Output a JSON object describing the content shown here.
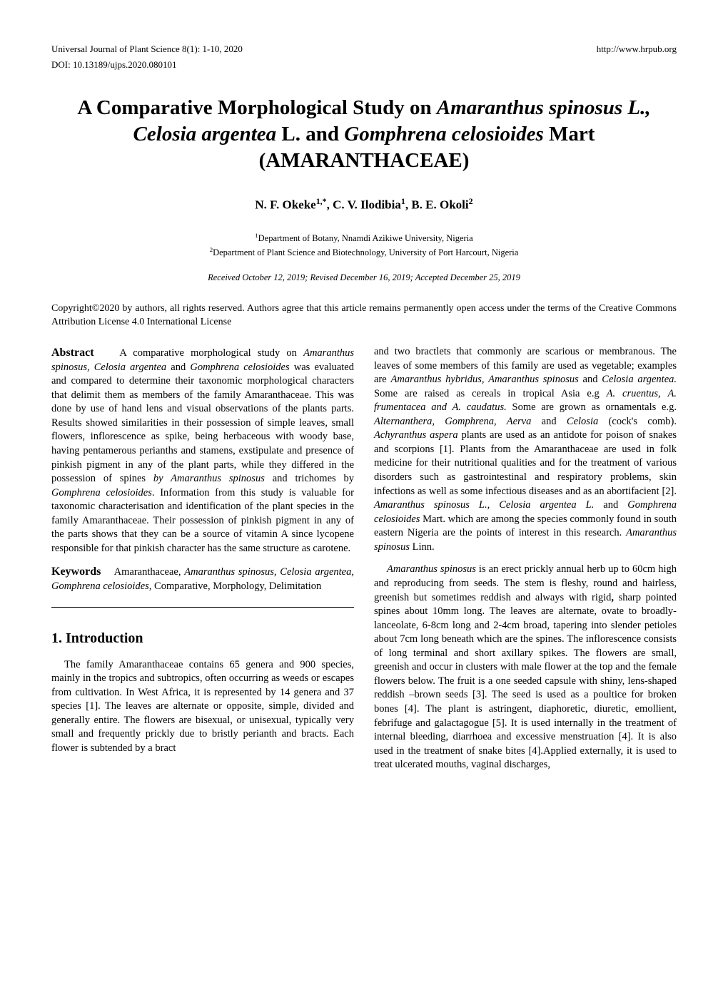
{
  "header": {
    "journal": "Universal Journal of Plant Science 8(1): 1-10, 2020",
    "url": "http://www.hrpub.org",
    "doi": "DOI: 10.13189/ujps.2020.080101"
  },
  "title_lines": [
    "A Comparative Morphological Study on ",
    "Amaranthus spinosus L., Celosia argentea",
    " L. and ",
    "Gomphrena celosioides",
    " Mart (AMARANTHACEAE)"
  ],
  "authors": "N. F. Okeke",
  "author_sup1": "1,*",
  "authors2": ", C. V. Ilodibia",
  "author_sup2": "1",
  "authors3": ", B. E. Okoli",
  "author_sup3": "2",
  "affil1_sup": "1",
  "affil1": "Department of Botany, Nnamdi Azikiwe University, Nigeria",
  "affil2_sup": "2",
  "affil2": "Department of Plant Science and Biotechnology, University of Port Harcourt, Nigeria",
  "received": "Received October 12, 2019; Revised December 16, 2019; Accepted December 25, 2019",
  "copyright": "Copyright©2020 by authors, all rights reserved. Authors agree that this article remains permanently open access under the terms of the Creative Commons Attribution License 4.0 International License",
  "abstract_label": "Abstract",
  "abstract_body1": "A comparative morphological study on ",
  "abstract_italic1": "Amaranthus spinosus, Celosia argentea",
  "abstract_body2": " and ",
  "abstract_italic2": "Gomphrena celosioides",
  "abstract_body3": " was evaluated and compared to determine their taxonomic morphological characters that delimit them as members of the family Amaranthaceae. This was done by use of hand lens and visual observations of the plants parts. Results showed similarities in their possession of simple leaves, small flowers, inflorescence as spike, being herbaceous with woody base, having pentamerous perianths and stamens, exstipulate and presence of pinkish pigment in any of the plant parts, while they differed in the possession of spines ",
  "abstract_italic3": "by Amaranthus spinosus",
  "abstract_body4": " and trichomes by ",
  "abstract_italic4": "Gomphrena celosioides",
  "abstract_body5": ". Information from this study is valuable for taxonomic characterisation and identification of the plant species in the family Amaranthaceae. Their possession of pinkish pigment in any of the parts shows that they can be a source of vitamin A since lycopene responsible for that pinkish character has the same structure as carotene.",
  "keywords_label": "Keywords",
  "keywords_body1": "Amaranthaceae, ",
  "keywords_italic1": "Amaranthus spinosus, Celosia argentea, Gomphrena celosioides,",
  "keywords_body2": " Comparative, Morphology, Delimitation",
  "section1_heading": "1. Introduction",
  "intro_p1": "The family Amaranthaceae contains 65 genera and 900 species, mainly in the tropics and subtropics, often occurring as weeds or escapes from cultivation. In West Africa, it is represented by 14 genera and 37 species [1]. The leaves are alternate or opposite, simple, divided and generally entire. The flowers are bisexual, or unisexual, typically very small and frequently prickly due to bristly perianth and bracts. Each flower is subtended by a bract",
  "col2_p1a": "and two bractlets that commonly are scarious or membranous. The leaves of some members of this family are used as vegetable; examples are ",
  "col2_p1_it1": "Amaranthus hybridus, Amaranthus spinosus",
  "col2_p1b": " and ",
  "col2_p1_it2": "Celosia argentea.",
  "col2_p1c": " Some are raised as cereals in tropical Asia e.g ",
  "col2_p1_it3": "A. cruentus",
  "col2_p1d": ", ",
  "col2_p1_it4": "A. frumentacea and A. caudatus.",
  "col2_p1e": " Some are grown as ornamentals e.g. ",
  "col2_p1_it5": "Alternanthera, Gomphrena, Aerva",
  "col2_p1f": " and ",
  "col2_p1_it6": "Celosia",
  "col2_p1g": " (cock's comb). ",
  "col2_p1_it7": "Achyranthus aspera",
  "col2_p1h": " plants are used as an antidote for poison of snakes and scorpions [1]. Plants from the Amaranthaceae are used in folk medicine for their nutritional qualities and for the treatment of various disorders such as gastrointestinal and respiratory problems, skin infections as well as some infectious diseases and as an abortifacient [2]. ",
  "col2_p1_it8": "Amaranthus spinosus L., Celosia argentea L.",
  "col2_p1i": " and ",
  "col2_p1_it9": "Gomphrena celosioides",
  "col2_p1j": " Mart. which are among the species commonly found in south eastern Nigeria are the points of interest in this research. ",
  "col2_p1_it10": "Amaranthus spinosus",
  "col2_p1k": " Linn.",
  "col2_p2_it1": "Amaranthus spinosus",
  "col2_p2a": " is an erect prickly annual herb up to 60cm high and reproducing from seeds. The stem is fleshy, round and hairless, greenish but sometimes reddish and always with rigid",
  "col2_p2bold": ",",
  "col2_p2b": " sharp pointed spines about 10mm long. The leaves are alternate, ovate to broadly-lanceolate, 6-8cm long and 2-4cm broad, tapering into slender petioles about 7cm long beneath which are the spines. The inflorescence consists of long terminal and short axillary spikes. The flowers are small, greenish and occur in clusters with male flower at the top and the female flowers below. The fruit is a one seeded capsule with shiny, lens-shaped reddish –brown seeds [3]. The seed is used as a poultice for broken bones [4]. The plant is astringent, diaphoretic, diuretic, emollient, febrifuge and galactagogue [5]. It is used internally in the treatment of internal bleeding, diarrhoea and excessive menstruation [4]. It is also used in the treatment of snake bites [4].Applied externally, it is used to treat ulcerated mouths, vaginal discharges,"
}
